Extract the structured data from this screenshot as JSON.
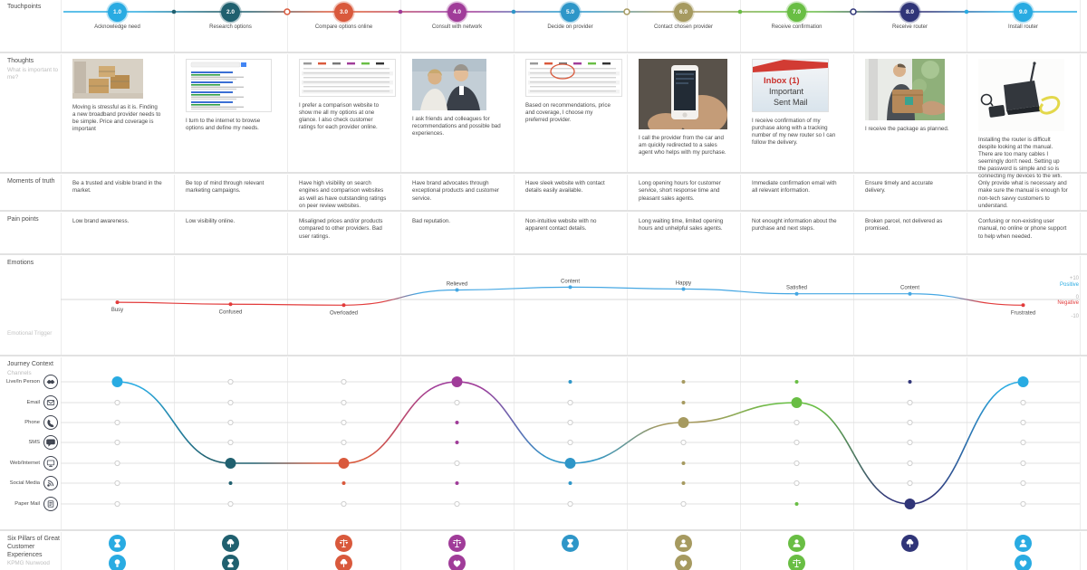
{
  "colors": {
    "tp": [
      "#29ABE2",
      "#20606F",
      "#D9593C",
      "#A03C99",
      "#2E96C8",
      "#A69A60",
      "#69BE44",
      "#303578",
      "#29ABE2"
    ],
    "positive": "#45A7E3",
    "negative": "#E23B3B",
    "grid": "#ececec",
    "text": "#4a4a4a",
    "muted": "#bdbdbd"
  },
  "touchpoints": {
    "label": "Touchpoints",
    "items": [
      {
        "num": "1.0",
        "label": "Acknowledge need"
      },
      {
        "num": "2.0",
        "label": "Research options"
      },
      {
        "num": "3.0",
        "label": "Compare options online"
      },
      {
        "num": "4.0",
        "label": "Consult with network"
      },
      {
        "num": "5.0",
        "label": "Decide on provider"
      },
      {
        "num": "6.0",
        "label": "Contact chosen provider"
      },
      {
        "num": "7.0",
        "label": "Receive confirmation"
      },
      {
        "num": "8.0",
        "label": "Receive router"
      },
      {
        "num": "9.0",
        "label": "Install router"
      }
    ]
  },
  "thoughts": {
    "label": "Thoughts",
    "sublabel": "What is important to me?",
    "items": [
      {
        "illustration": "boxes",
        "caption": "Moving is stressful as it is. Finding a new broadband provider needs to be simple. Price and coverage is important"
      },
      {
        "illustration": "search",
        "caption": "I turn to the internet to browse options and define my needs."
      },
      {
        "illustration": "table",
        "caption": "I prefer a comparison website to show me all my options at one glance. I also check customer ratings for each provider online."
      },
      {
        "illustration": "people",
        "caption": "I ask friends and colleagues for recommendations and possible bad experiences."
      },
      {
        "illustration": "table-circled",
        "caption": "Based on recommendations, price and coverage, I choose my preferred provider."
      },
      {
        "illustration": "phone",
        "caption": "I call the provider from the car and am quickly redirected to a sales agent who helps with my purchase."
      },
      {
        "illustration": "inbox",
        "image_lines": [
          "Inbox (1)",
          "Important",
          "Sent Mail"
        ],
        "caption": "I receive confirmation of my purchase along with a tracking number of my new router so I can follow the delivery."
      },
      {
        "illustration": "package",
        "caption": "I receive the package as planned."
      },
      {
        "illustration": "router",
        "caption": "Installing the router is difficult despite looking at the manual. There are too many cables I seemingly don't need. Setting up the password is simple and so is connecting my devices to the wifi."
      }
    ]
  },
  "moments": {
    "label": "Moments of truth",
    "items": [
      "Be a trusted and visible brand in the market.",
      "Be top of mind through relevant marketing campaigns.",
      "Have high visibility on search engines and comparison websites as well as have outstanding ratings on peer review websites.",
      "Have brand advocates through exceptional products and customer service.",
      "Have sleek website with contact details easily available.",
      "Long opening hours for customer service, short response time and pleasant sales agents.",
      "Immediate confirmation email with all relevant information.",
      "Ensure timely and accurate delivery.",
      "Only provide what is necessary and make sure the manual is enough for non-tech savvy customers to understand."
    ]
  },
  "pain": {
    "label": "Pain points",
    "items": [
      "Low brand awareness.",
      "Low visibility online.",
      "Misaligned prices and/or products compared to other providers. Bad user ratings.",
      "Bad reputation.",
      "Non-intuitive website with no apparent contact details.",
      "Long waiting time, limited opening hours and unhelpful sales agents.",
      "Not enought information about the purchase and next steps.",
      "Broken parcel, not delivered as promised.",
      "Confusing or non-existing user manual, no online or phone support to help when needed."
    ]
  },
  "emotions": {
    "label": "Emotions",
    "trigger_label": "Emotional Trigger",
    "axis": {
      "pos_val": "+10",
      "pos_label": "Positive",
      "zero": "0",
      "neg_label": "Negative",
      "neg_val": "-10"
    },
    "points": [
      {
        "label": "Busy",
        "value": -1.5
      },
      {
        "label": "Confused",
        "value": -2.5
      },
      {
        "label": "Overloaded",
        "value": -3
      },
      {
        "label": "Relieved",
        "value": 5
      },
      {
        "label": "Content",
        "value": 6.5
      },
      {
        "label": "Happy",
        "value": 5.5
      },
      {
        "label": "Satisfied",
        "value": 3
      },
      {
        "label": "Content",
        "value": 3
      },
      {
        "label": "Frustrated",
        "value": -3
      }
    ]
  },
  "channels": {
    "label": "Journey Context",
    "sublabel": "Channels",
    "rows": [
      {
        "label": "Live/In Person",
        "icon": "handshake-icon"
      },
      {
        "label": "Email",
        "icon": "envelope-icon"
      },
      {
        "label": "Phone",
        "icon": "phone-icon"
      },
      {
        "label": "SMS",
        "icon": "sms-icon"
      },
      {
        "label": "Web/Internet",
        "icon": "monitor-icon"
      },
      {
        "label": "Social Media",
        "icon": "rss-icon"
      },
      {
        "label": "Paper Mail",
        "icon": "paper-mail-icon"
      }
    ],
    "matrix": [
      {
        "primary": 0,
        "secondary": []
      },
      {
        "primary": 4,
        "secondary": [
          5
        ]
      },
      {
        "primary": 4,
        "secondary": [
          5
        ]
      },
      {
        "primary": 0,
        "secondary": [
          2,
          3,
          5
        ]
      },
      {
        "primary": 4,
        "secondary": [
          0,
          5
        ]
      },
      {
        "primary": 2,
        "secondary": [
          0,
          1,
          4,
          5
        ]
      },
      {
        "primary": 1,
        "secondary": [
          0,
          6
        ]
      },
      {
        "primary": 6,
        "secondary": [
          0
        ]
      },
      {
        "primary": 0,
        "secondary": []
      }
    ]
  },
  "pillars": {
    "label": "Six Pillars of Great Customer Experiences",
    "sublabel": "KPMG Nunwood",
    "columns": [
      {
        "icons": [
          "hourglass-icon",
          "lightbulb-icon"
        ]
      },
      {
        "icons": [
          "tree-icon",
          "hourglass-icon"
        ]
      },
      {
        "icons": [
          "scales-icon",
          "tree-icon"
        ]
      },
      {
        "icons": [
          "scales-icon",
          "heart-icon"
        ]
      },
      {
        "icons": [
          "hourglass-icon"
        ]
      },
      {
        "icons": [
          "person-icon",
          "heart-icon"
        ]
      },
      {
        "icons": [
          "person-icon",
          "scales-icon"
        ]
      },
      {
        "icons": [
          "tree-icon"
        ]
      },
      {
        "icons": [
          "person-icon",
          "heart-icon"
        ]
      }
    ]
  },
  "chart_data": [
    {
      "type": "line",
      "title": "Emotions",
      "x": [
        "Acknowledge need",
        "Research options",
        "Compare options online",
        "Consult with network",
        "Decide on provider",
        "Contact chosen provider",
        "Receive confirmation",
        "Receive router",
        "Install router"
      ],
      "point_labels": [
        "Busy",
        "Confused",
        "Overloaded",
        "Relieved",
        "Content",
        "Happy",
        "Satisfied",
        "Content",
        "Frustrated"
      ],
      "series": [
        {
          "name": "Emotion level",
          "values": [
            -1.5,
            -2.5,
            -3,
            5,
            6.5,
            5.5,
            3,
            3,
            -3
          ]
        }
      ],
      "ylim": [
        -10,
        10
      ],
      "grid": "zero-line-only",
      "positive_color": "#45A7E3",
      "negative_color": "#E23B3B"
    },
    {
      "type": "line",
      "title": "Journey Context Channels",
      "rows": [
        "Live/In Person",
        "Email",
        "Phone",
        "SMS",
        "Web/Internet",
        "Social Media",
        "Paper Mail"
      ],
      "primary_channel_per_touchpoint": [
        "Live/In Person",
        "Web/Internet",
        "Web/Internet",
        "Live/In Person",
        "Web/Internet",
        "Phone",
        "Email",
        "Paper Mail",
        "Live/In Person"
      ],
      "secondary_channels_per_touchpoint": [
        [],
        [
          "Social Media"
        ],
        [
          "Social Media"
        ],
        [
          "Phone",
          "SMS",
          "Social Media"
        ],
        [
          "Live/In Person",
          "Social Media"
        ],
        [
          "Live/In Person",
          "Email",
          "Web/Internet",
          "Social Media"
        ],
        [
          "Live/In Person",
          "Paper Mail"
        ],
        [
          "Live/In Person"
        ],
        []
      ]
    }
  ]
}
